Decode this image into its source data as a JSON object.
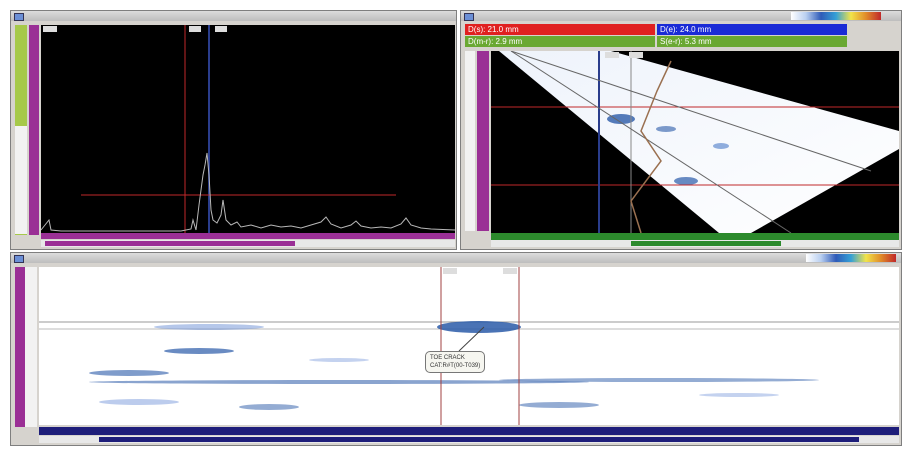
{
  "ascan_panel": {
    "title": "",
    "vertical_scale_ticks": [],
    "horizontal_ticks": [],
    "colors": {
      "background": "#000000",
      "trace": "#b8b8b8",
      "cursor": "#c0282a",
      "gate": "#2a3d8c"
    }
  },
  "sscan_panel": {
    "title": "",
    "readouts": [
      {
        "label": "D(s): 21.0 mm",
        "color": "#e02020"
      },
      {
        "label": "D(e): 24.0 mm",
        "color": "#1a2bd6"
      },
      {
        "label": "D(m-r): 2.9 mm",
        "color": "#6aa832"
      },
      {
        "label": "S(e-r): 5.3 mm",
        "color": "#6aa832"
      }
    ],
    "colors": {
      "background": "#000000",
      "ruler": "#2c8a2c",
      "side_ruler": "#9a2f95"
    }
  },
  "cscan_panel": {
    "title": "",
    "annotation_lines": [
      "TOE CRACK",
      "CAT:R#T(00-T039)"
    ],
    "colors": {
      "ruler": "#1e1e7a",
      "cursor": "#a04040"
    }
  },
  "icons": [
    "window-icon",
    "color-palette-gradient",
    "cursor-marker-icon"
  ]
}
